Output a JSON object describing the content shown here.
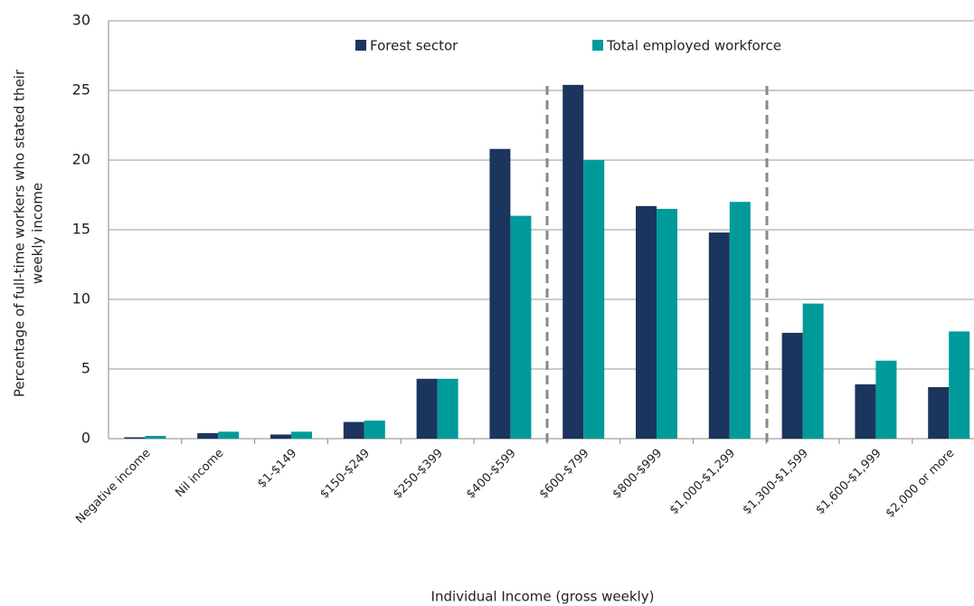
{
  "chart_data": {
    "type": "bar",
    "categories": [
      "Negative income",
      "Nil income",
      "$1-$149",
      "$150-$249",
      "$250-$399",
      "$400-$599",
      "$600-$799",
      "$800-$999",
      "$1,000-$1,299",
      "$1,300-$1,599",
      "$1,600-$1,999",
      "$2,000 or more"
    ],
    "series": [
      {
        "name": "Forest sector",
        "color": "#1c355e",
        "values": [
          0.1,
          0.4,
          0.3,
          1.2,
          4.3,
          20.8,
          25.4,
          16.7,
          14.8,
          7.6,
          3.9,
          3.7
        ]
      },
      {
        "name": "Total employed workforce",
        "color": "#009a9a",
        "values": [
          0.2,
          0.5,
          0.5,
          1.3,
          4.3,
          16.0,
          20.0,
          16.5,
          17.0,
          9.7,
          5.6,
          7.7
        ]
      }
    ],
    "xlabel": "Individual Income (gross weekly)",
    "ylabel": [
      "Percentage of full-time workers who stated their",
      "weekly income"
    ],
    "ylim": [
      0,
      30
    ],
    "yticks": [
      0,
      5,
      10,
      15,
      20,
      25,
      30
    ],
    "grid": true
  }
}
